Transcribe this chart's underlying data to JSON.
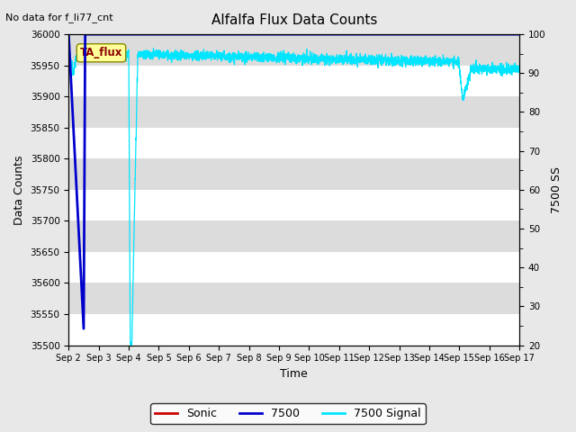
{
  "title": "Alfalfa Flux Data Counts",
  "xlabel": "Time",
  "ylabel_left": "Data Counts",
  "ylabel_right": "7500 SS",
  "no_data_text": "No data for f_li77_cnt",
  "legend_box_label": "TA_flux",
  "ylim_left": [
    35500,
    36000
  ],
  "ylim_right": [
    20,
    100
  ],
  "yticks_left": [
    35500,
    35550,
    35600,
    35650,
    35700,
    35750,
    35800,
    35850,
    35900,
    35950,
    36000
  ],
  "yticks_right": [
    20,
    30,
    40,
    50,
    60,
    70,
    80,
    90,
    100
  ],
  "xtick_labels": [
    "Sep 2",
    "Sep 3",
    "Sep 4",
    "Sep 5",
    "Sep 6",
    "Sep 7",
    "Sep 8",
    "Sep 9",
    "Sep 10",
    "Sep 11",
    "Sep 12",
    "Sep 13",
    "Sep 14",
    "Sep 15",
    "Sep 16",
    "Sep 17"
  ],
  "background_color": "#dcdcdc",
  "band_color_light": "#e8e8e8",
  "band_color_dark": "#d0d0d0",
  "grid_color": "#ffffff",
  "line_7500_color": "#0000cc",
  "line_sonic_color": "#cc0000",
  "line_signal_color": "#00e5ff",
  "legend_entries": [
    "Sonic",
    "7500",
    "7500 Signal"
  ],
  "fig_bg_color": "#e8e8e8"
}
